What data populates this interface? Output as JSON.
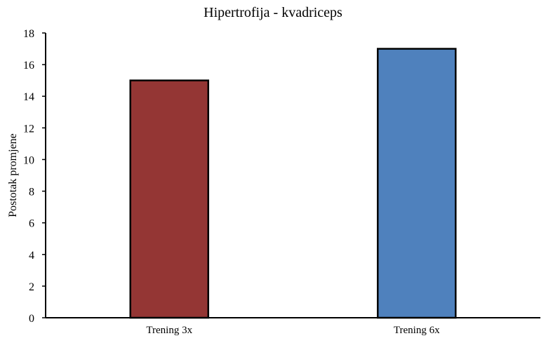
{
  "chart_data": {
    "type": "bar",
    "title": "Hipertrofija - kvadriceps",
    "xlabel": "",
    "ylabel": "Postotak promjene",
    "categories": [
      "Trening 3x",
      "Trening 6x"
    ],
    "values": [
      15,
      17
    ],
    "colors": [
      "#943634",
      "#4F81BD"
    ],
    "ylim": [
      0,
      18
    ],
    "yticks": [
      0,
      2,
      4,
      6,
      8,
      10,
      12,
      14,
      16,
      18
    ],
    "grid": false,
    "legend": "none"
  }
}
